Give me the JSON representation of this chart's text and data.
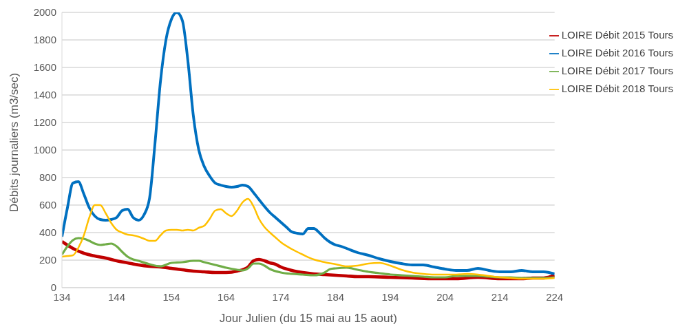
{
  "chart_data": {
    "type": "line",
    "xlabel": "Jour Julien (du 15 mai au 15 aout)",
    "ylabel": "Débits journaliers (m3/sec)",
    "xlim": [
      134,
      224
    ],
    "xticks": [
      134,
      144,
      154,
      164,
      174,
      184,
      194,
      204,
      214,
      224
    ],
    "ylim": [
      0,
      2000
    ],
    "yticks": [
      0,
      200,
      400,
      600,
      800,
      1000,
      1200,
      1400,
      1600,
      1800,
      2000
    ],
    "grid": "y",
    "legend": "top right",
    "marker": "none",
    "line_style": "solid",
    "series": [
      {
        "name": "LOIRE Débit 2015 Tours",
        "color": "#c00000",
        "x": [
          134,
          136,
          138,
          140,
          142,
          144,
          146,
          148,
          150,
          152,
          154,
          156,
          158,
          160,
          162,
          164,
          166,
          168,
          169,
          170,
          171,
          172,
          173,
          174,
          176,
          178,
          180,
          182,
          184,
          186,
          188,
          190,
          194,
          198,
          202,
          206,
          210,
          214,
          218,
          220,
          222,
          224
        ],
        "values": [
          335,
          285,
          250,
          230,
          215,
          195,
          180,
          165,
          155,
          150,
          140,
          130,
          120,
          115,
          110,
          110,
          120,
          150,
          195,
          205,
          195,
          180,
          170,
          150,
          125,
          110,
          100,
          95,
          90,
          85,
          80,
          80,
          75,
          70,
          65,
          65,
          75,
          65,
          65,
          70,
          70,
          90
        ]
      },
      {
        "name": "LOIRE Débit 2016 Tours",
        "color": "#0070c0",
        "x": [
          134,
          135,
          136,
          137,
          138,
          139,
          140,
          141,
          142,
          143,
          144,
          145,
          146,
          147,
          148,
          149,
          150,
          151,
          152,
          153,
          154,
          155,
          156,
          157,
          158,
          159,
          160,
          161,
          162,
          163,
          164,
          165,
          166,
          167,
          168,
          169,
          170,
          171,
          172,
          173,
          174,
          175,
          176,
          177,
          178,
          179,
          180,
          181,
          182,
          183,
          184,
          185,
          186,
          188,
          190,
          192,
          194,
          196,
          198,
          200,
          202,
          204,
          206,
          208,
          210,
          212,
          214,
          216,
          218,
          220,
          222,
          224
        ],
        "values": [
          370,
          580,
          760,
          770,
          680,
          580,
          520,
          495,
          490,
          495,
          510,
          560,
          570,
          510,
          490,
          530,
          650,
          1050,
          1500,
          1800,
          1950,
          2000,
          1940,
          1650,
          1250,
          1000,
          880,
          810,
          760,
          745,
          735,
          730,
          735,
          745,
          735,
          690,
          640,
          590,
          545,
          510,
          475,
          440,
          405,
          395,
          390,
          430,
          430,
          400,
          360,
          330,
          310,
          300,
          285,
          255,
          235,
          210,
          190,
          175,
          165,
          165,
          150,
          135,
          125,
          125,
          140,
          125,
          115,
          115,
          125,
          115,
          115,
          100
        ]
      },
      {
        "name": "LOIRE Débit 2017 Tours",
        "color": "#70ad47",
        "x": [
          134,
          135,
          136,
          137,
          138,
          139,
          140,
          141,
          142,
          143,
          144,
          145,
          146,
          147,
          148,
          150,
          152,
          154,
          156,
          158,
          159,
          160,
          162,
          164,
          166,
          167,
          168,
          169,
          170,
          171,
          172,
          174,
          176,
          178,
          180,
          182,
          183,
          184,
          186,
          188,
          190,
          192,
          194,
          196,
          198,
          200,
          202,
          204,
          206,
          208,
          210,
          212,
          214,
          216,
          218,
          220,
          222,
          224
        ],
        "values": [
          240,
          300,
          345,
          360,
          355,
          340,
          320,
          310,
          315,
          320,
          300,
          260,
          225,
          205,
          195,
          170,
          155,
          180,
          185,
          195,
          195,
          185,
          165,
          145,
          130,
          125,
          140,
          175,
          175,
          160,
          135,
          110,
          100,
          95,
          90,
          110,
          135,
          140,
          145,
          130,
          115,
          105,
          95,
          90,
          85,
          80,
          75,
          75,
          85,
          85,
          85,
          80,
          75,
          75,
          70,
          70,
          70,
          75
        ]
      },
      {
        "name": "LOIRE Débit 2018 Tours",
        "color": "#ffc000",
        "x": [
          134,
          135,
          136,
          137,
          138,
          139,
          140,
          141,
          142,
          143,
          144,
          145,
          146,
          147,
          148,
          149,
          150,
          151,
          152,
          153,
          154,
          155,
          156,
          157,
          158,
          159,
          160,
          161,
          162,
          163,
          164,
          165,
          166,
          167,
          168,
          169,
          170,
          171,
          172,
          173,
          174,
          176,
          178,
          180,
          182,
          184,
          186,
          188,
          190,
          192,
          194,
          196,
          198,
          200,
          202,
          204,
          206,
          208,
          210,
          212,
          214,
          216,
          218,
          220,
          222,
          224
        ],
        "values": [
          225,
          230,
          235,
          290,
          380,
          510,
          600,
          600,
          540,
          470,
          420,
          400,
          385,
          380,
          370,
          355,
          340,
          340,
          380,
          415,
          420,
          420,
          415,
          420,
          415,
          435,
          450,
          500,
          560,
          570,
          540,
          520,
          560,
          620,
          645,
          590,
          500,
          440,
          400,
          365,
          330,
          280,
          240,
          205,
          185,
          170,
          155,
          160,
          175,
          180,
          160,
          130,
          110,
          100,
          95,
          95,
          95,
          100,
          95,
          85,
          75,
          70,
          65,
          65,
          65,
          70
        ]
      }
    ]
  }
}
